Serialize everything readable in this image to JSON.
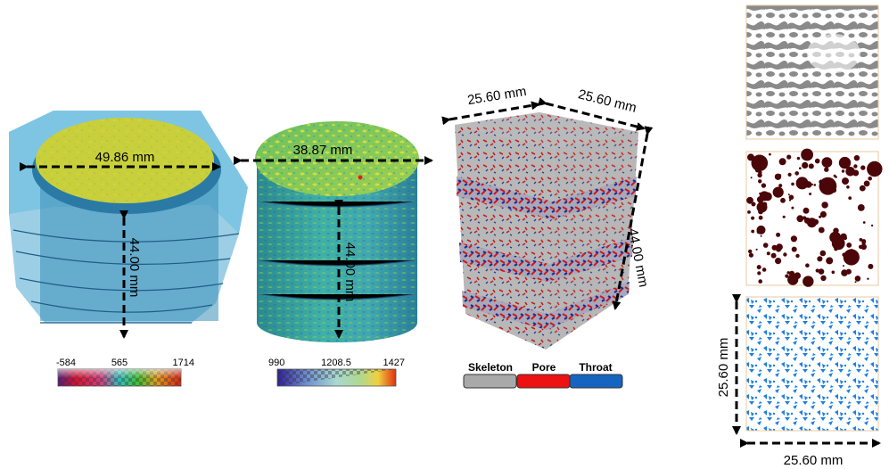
{
  "figure": {
    "panel_1": {
      "diameter_label": "49.86 mm",
      "height_label": "44.00 mm",
      "colorbar": {
        "min": "-584",
        "mid": "565",
        "max": "1714"
      }
    },
    "panel_2": {
      "diameter_label": "38.87 mm",
      "height_label": "44.00 mm",
      "colorbar": {
        "min": "990",
        "mid": "1208.5",
        "max": "1427"
      }
    },
    "panel_3": {
      "top_left_label": "25.60 mm",
      "top_right_label": "25.60 mm",
      "side_label": "44.00 mm",
      "legend": [
        {
          "label": "Skeleton",
          "color": "#a9a9a9"
        },
        {
          "label": "Pore",
          "color": "#ee1111"
        },
        {
          "label": "Throat",
          "color": "#1565c0"
        }
      ]
    },
    "panel_4": {
      "slices": [
        "skeleton-slice",
        "pore-slice",
        "throat-slice"
      ],
      "vertical_label": "25.60 mm",
      "horizontal_label": "25.60 mm"
    }
  },
  "colors": {
    "arrow": "#000000",
    "core_side": "#3f8fb8",
    "core_top": "#c8cf3a",
    "cyl_side": "#2fa0b0",
    "cyl_top": "#7cc460",
    "pore_dark": "#4a0608",
    "throat_blue": "#1e7fe0",
    "skeleton_gray": "#888888"
  }
}
